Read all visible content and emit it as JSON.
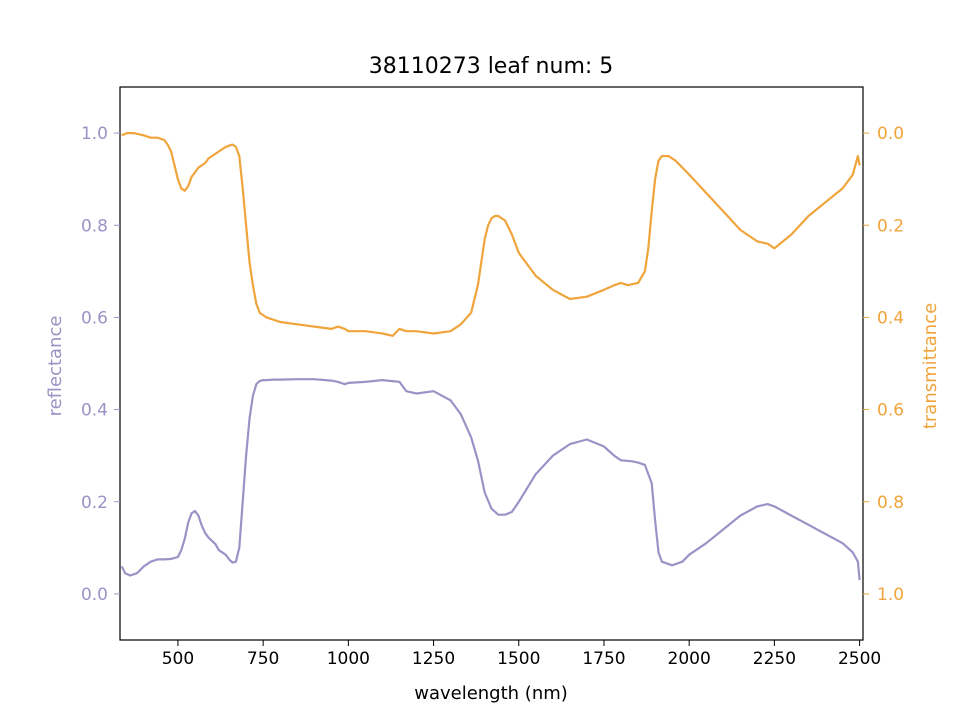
{
  "chart_data": {
    "type": "line",
    "title": "38110273 leaf num: 5",
    "xlabel": "wavelength (nm)",
    "ylabel_left": "reflectance",
    "ylabel_right": "transmittance",
    "xlim": [
      330,
      2510
    ],
    "ylim_left": [
      -0.1,
      1.1
    ],
    "ylim_right": [
      1.1,
      -0.1
    ],
    "x_ticks": [
      500,
      750,
      1000,
      1250,
      1500,
      1750,
      2000,
      2250,
      2500
    ],
    "x_tick_labels": [
      "500",
      "750",
      "1000",
      "1250",
      "1500",
      "1750",
      "2000",
      "2250",
      "2500"
    ],
    "y_left_ticks": [
      0.0,
      0.2,
      0.4,
      0.6,
      0.8,
      1.0
    ],
    "y_left_tick_labels": [
      "0.0",
      "0.2",
      "0.4",
      "0.6",
      "0.8",
      "1.0"
    ],
    "y_right_ticks": [
      0.0,
      0.2,
      0.4,
      0.6,
      0.8,
      1.0
    ],
    "y_right_tick_labels": [
      "0.0",
      "0.2",
      "0.4",
      "0.6",
      "0.8",
      "1.0"
    ],
    "colors": {
      "reflectance": "#9b93c6",
      "transmittance": "#f0a43c",
      "axis": "#000000"
    },
    "grid": false,
    "series": [
      {
        "axis": "left",
        "x": [
          335,
          345,
          360,
          380,
          400,
          420,
          440,
          460,
          480,
          500,
          510,
          520,
          530,
          540,
          550,
          560,
          570,
          580,
          590,
          600,
          610,
          620,
          630,
          640,
          650,
          660,
          670,
          680,
          690,
          700,
          710,
          720,
          730,
          740,
          750,
          760,
          780,
          800,
          850,
          900,
          950,
          970,
          990,
          1000,
          1050,
          1100,
          1150,
          1170,
          1200,
          1250,
          1300,
          1330,
          1360,
          1380,
          1400,
          1420,
          1440,
          1460,
          1480,
          1500,
          1550,
          1600,
          1650,
          1700,
          1750,
          1780,
          1800,
          1830,
          1850,
          1870,
          1890,
          1900,
          1910,
          1920,
          1950,
          1980,
          2000,
          2050,
          2100,
          2150,
          2200,
          2230,
          2250,
          2300,
          2350,
          2400,
          2450,
          2480,
          2495,
          2500
        ],
        "y": [
          0.06,
          0.045,
          0.04,
          0.045,
          0.06,
          0.07,
          0.075,
          0.075,
          0.076,
          0.08,
          0.095,
          0.12,
          0.155,
          0.175,
          0.18,
          0.17,
          0.148,
          0.132,
          0.122,
          0.115,
          0.108,
          0.095,
          0.09,
          0.085,
          0.075,
          0.068,
          0.07,
          0.1,
          0.2,
          0.3,
          0.38,
          0.43,
          0.455,
          0.462,
          0.464,
          0.464,
          0.465,
          0.465,
          0.466,
          0.466,
          0.463,
          0.46,
          0.455,
          0.458,
          0.46,
          0.464,
          0.46,
          0.44,
          0.435,
          0.44,
          0.42,
          0.39,
          0.34,
          0.29,
          0.22,
          0.185,
          0.172,
          0.172,
          0.178,
          0.2,
          0.26,
          0.3,
          0.325,
          0.335,
          0.32,
          0.3,
          0.29,
          0.288,
          0.285,
          0.28,
          0.24,
          0.16,
          0.09,
          0.07,
          0.062,
          0.07,
          0.085,
          0.11,
          0.14,
          0.17,
          0.19,
          0.195,
          0.19,
          0.17,
          0.15,
          0.13,
          0.11,
          0.09,
          0.07,
          0.03
        ]
      },
      {
        "axis": "right",
        "x": [
          335,
          350,
          370,
          400,
          420,
          440,
          460,
          470,
          480,
          490,
          500,
          510,
          520,
          530,
          540,
          550,
          560,
          570,
          580,
          590,
          600,
          620,
          640,
          660,
          670,
          680,
          690,
          700,
          710,
          720,
          730,
          740,
          750,
          760,
          780,
          800,
          850,
          900,
          950,
          970,
          990,
          1000,
          1050,
          1100,
          1130,
          1150,
          1170,
          1200,
          1250,
          1300,
          1330,
          1360,
          1380,
          1390,
          1400,
          1410,
          1420,
          1430,
          1440,
          1460,
          1480,
          1500,
          1550,
          1600,
          1650,
          1700,
          1750,
          1780,
          1800,
          1820,
          1850,
          1870,
          1880,
          1890,
          1900,
          1910,
          1920,
          1940,
          1960,
          1980,
          2000,
          2050,
          2100,
          2150,
          2200,
          2230,
          2250,
          2300,
          2350,
          2400,
          2450,
          2480,
          2495,
          2500
        ],
        "y": [
          0.005,
          0.0,
          0.0,
          0.005,
          0.01,
          0.01,
          0.015,
          0.025,
          0.04,
          0.07,
          0.1,
          0.12,
          0.125,
          0.115,
          0.095,
          0.085,
          0.075,
          0.07,
          0.065,
          0.055,
          0.05,
          0.04,
          0.03,
          0.025,
          0.03,
          0.05,
          0.12,
          0.2,
          0.28,
          0.33,
          0.37,
          0.39,
          0.395,
          0.4,
          0.405,
          0.41,
          0.415,
          0.42,
          0.425,
          0.42,
          0.425,
          0.43,
          0.43,
          0.435,
          0.44,
          0.425,
          0.43,
          0.43,
          0.435,
          0.43,
          0.415,
          0.39,
          0.33,
          0.28,
          0.23,
          0.2,
          0.185,
          0.18,
          0.18,
          0.19,
          0.22,
          0.26,
          0.31,
          0.34,
          0.36,
          0.355,
          0.34,
          0.33,
          0.325,
          0.33,
          0.325,
          0.3,
          0.25,
          0.17,
          0.1,
          0.06,
          0.05,
          0.05,
          0.06,
          0.075,
          0.09,
          0.13,
          0.17,
          0.21,
          0.235,
          0.24,
          0.25,
          0.22,
          0.18,
          0.15,
          0.12,
          0.09,
          0.05,
          0.07
        ]
      }
    ]
  }
}
